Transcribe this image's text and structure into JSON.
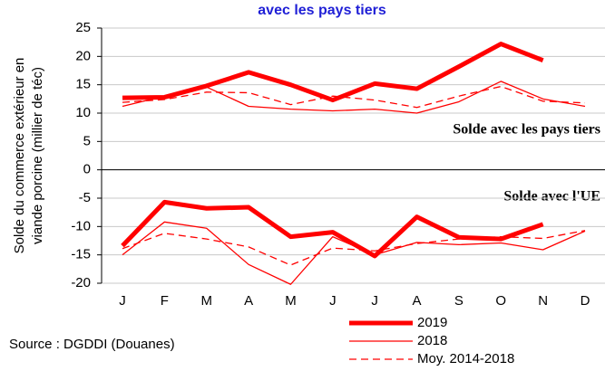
{
  "chart_data": {
    "type": "line",
    "title": "avec les pays tiers",
    "y_label": [
      "Solde du commerce extérieur en",
      "viande porcine (millier de téc)"
    ],
    "categories": [
      "J",
      "F",
      "M",
      "A",
      "M",
      "J",
      "J",
      "A",
      "S",
      "O",
      "N",
      "D"
    ],
    "series": [
      {
        "name": "2019",
        "color": "#ff0000",
        "line_width": 5,
        "dash": false,
        "values": [
          12.7,
          12.8,
          14.8,
          17.2,
          15,
          12.3,
          15.2,
          14.3,
          18.2,
          22.2,
          19.3,
          null
        ],
        "values_ue": [
          -13.4,
          -5.7,
          -6.8,
          -6.6,
          -11.8,
          -11,
          -15.2,
          -8.3,
          -11.9,
          -12.2,
          -9.6,
          null
        ]
      },
      {
        "name": "2018",
        "color": "#ff0000",
        "line_width": 1.3,
        "dash": false,
        "values": [
          11.2,
          13,
          14.6,
          11.2,
          10.7,
          10.4,
          10.7,
          10,
          12,
          15.6,
          12.5,
          11.2
        ],
        "values_ue": [
          -15,
          -9.2,
          -10.3,
          -16.7,
          -20.2,
          -11.8,
          -15,
          -12.8,
          -13.2,
          -12.9,
          -14.1,
          -10.8
        ]
      },
      {
        "name": "Moy. 2014-2018",
        "color": "#ff0000",
        "line_width": 1.3,
        "dash": true,
        "values": [
          11.9,
          12.4,
          13.7,
          13.6,
          11.5,
          13,
          12.3,
          11,
          13,
          14.7,
          12.1,
          11.8
        ],
        "values_ue": [
          -13.9,
          -11.2,
          -12.2,
          -13.6,
          -16.8,
          -13.8,
          -14.3,
          -13,
          -12.2,
          -11.8,
          -12.1,
          -10.7
        ]
      }
    ],
    "annotations": [
      "Solde avec les pays tiers",
      "Solde avec l'UE"
    ],
    "source": "Source : DGDDI  (Douanes)",
    "ylim": [
      -20,
      25
    ],
    "yticks": [
      -20,
      -15,
      -10,
      -5,
      0,
      5,
      10,
      15,
      20,
      25
    ],
    "grid": true
  }
}
